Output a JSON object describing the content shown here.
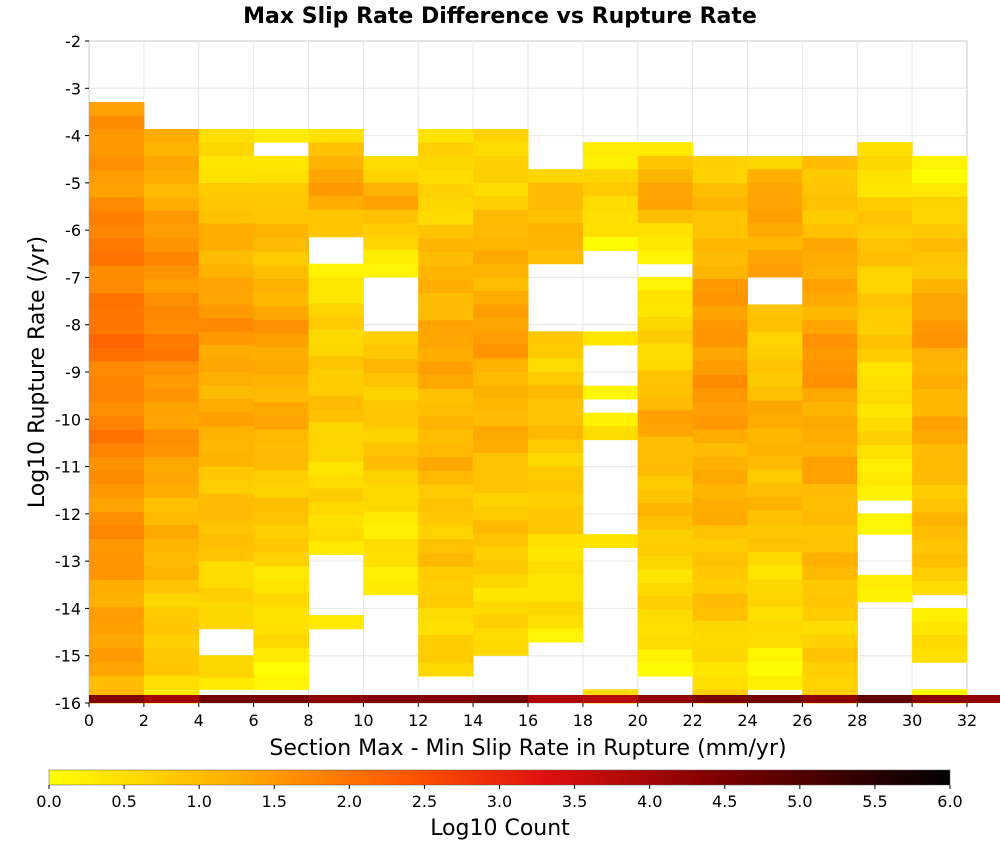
{
  "chart_data": {
    "type": "heatmap",
    "title": "Max Slip Rate Difference vs Rupture Rate",
    "xlabel": "Section Max - Min Slip Rate in Rupture (mm/yr)",
    "ylabel": "Log10 Rupture Rate (/yr)",
    "colorbar_label": "Log10 Count",
    "xlim": [
      0,
      32
    ],
    "ylim": [
      -16,
      -2
    ],
    "x_ticks": [
      "0",
      "2",
      "4",
      "6",
      "8",
      "10",
      "12",
      "14",
      "16",
      "18",
      "20",
      "22",
      "24",
      "26",
      "28",
      "30",
      "32"
    ],
    "y_ticks": [
      "-2",
      "-3",
      "-4",
      "-5",
      "-6",
      "-7",
      "-8",
      "-9",
      "-10",
      "-11",
      "-12",
      "-13",
      "-14",
      "-15",
      "-16"
    ],
    "colorbar_ticks": [
      "0.0",
      "0.5",
      "1.0",
      "1.5",
      "2.0",
      "2.5",
      "3.0",
      "3.5",
      "4.0",
      "4.5",
      "5.0",
      "5.5",
      "6.0"
    ],
    "colorbar_range": [
      0,
      6
    ],
    "colorbar_colors": [
      "#ffff00",
      "#ffb000",
      "#ff5500",
      "#e01010",
      "#7a0000",
      "#000000"
    ],
    "x_bin_width": 2,
    "y_bin_height": 0.286,
    "columns": [
      {
        "x_start": 0,
        "segments": [
          {
            "y_top": -3.29,
            "y_bottom": -16.0,
            "from": 1.4,
            "peak": 2.0,
            "to": 1.2
          }
        ]
      },
      {
        "x_start": 2,
        "segments": [
          {
            "y_top": -3.86,
            "y_bottom": -15.71,
            "from": 1.1,
            "peak": 1.8,
            "to": 0.6
          },
          {
            "y_top": -15.71,
            "y_bottom": -16.0,
            "from": 0.3,
            "peak": 0.3,
            "to": 0.3
          }
        ]
      },
      {
        "x_start": 4,
        "segments": [
          {
            "y_top": -3.86,
            "y_bottom": -14.43,
            "from": 0.4,
            "peak": 1.5,
            "to": 0.6
          },
          {
            "y_top": -14.99,
            "y_bottom": -15.71,
            "from": 0.5,
            "peak": 0.7,
            "to": 0.6
          }
        ]
      },
      {
        "x_start": 6,
        "segments": [
          {
            "y_top": -3.86,
            "y_bottom": -4.14,
            "from": 0.3,
            "peak": 0.3,
            "to": 0.3
          },
          {
            "y_top": -4.43,
            "y_bottom": -15.71,
            "from": 0.6,
            "peak": 1.4,
            "to": 0.2
          }
        ]
      },
      {
        "x_start": 8,
        "segments": [
          {
            "y_top": -3.86,
            "y_bottom": -6.14,
            "from": 0.6,
            "peak": 1.4,
            "to": 0.9
          },
          {
            "y_top": -6.71,
            "y_bottom": -12.86,
            "from": 0.2,
            "peak": 0.9,
            "to": 0.4
          },
          {
            "y_top": -14.14,
            "y_bottom": -14.43,
            "from": 0.2,
            "peak": 0.2,
            "to": 0.2
          }
        ]
      },
      {
        "x_start": 10,
        "segments": [
          {
            "y_top": -4.43,
            "y_bottom": -6.99,
            "from": 0.6,
            "peak": 1.2,
            "to": 0.3
          },
          {
            "y_top": -8.14,
            "y_bottom": -13.71,
            "from": 0.8,
            "peak": 0.9,
            "to": 0.2
          }
        ]
      },
      {
        "x_start": 12,
        "segments": [
          {
            "y_top": -3.86,
            "y_bottom": -15.43,
            "from": 0.4,
            "peak": 1.3,
            "to": 0.6
          }
        ]
      },
      {
        "x_start": 14,
        "segments": [
          {
            "y_top": -3.86,
            "y_bottom": -14.99,
            "from": 0.5,
            "peak": 1.4,
            "to": 0.5
          }
        ]
      },
      {
        "x_start": 16,
        "segments": [
          {
            "y_top": -4.71,
            "y_bottom": -6.71,
            "from": 0.6,
            "peak": 1.2,
            "to": 1.0
          },
          {
            "y_top": -8.14,
            "y_bottom": -14.71,
            "from": 0.8,
            "peak": 0.9,
            "to": 0.3
          }
        ]
      },
      {
        "x_start": 18,
        "segments": [
          {
            "y_top": -4.14,
            "y_bottom": -6.43,
            "from": 0.3,
            "peak": 0.8,
            "to": 0.1
          },
          {
            "y_top": -8.14,
            "y_bottom": -8.43,
            "from": 0.6,
            "peak": 0.6,
            "to": 0.6
          },
          {
            "y_top": -9.29,
            "y_bottom": -9.57,
            "from": 0.4,
            "peak": 0.4,
            "to": 0.4
          },
          {
            "y_top": -9.86,
            "y_bottom": -10.43,
            "from": 0.3,
            "peak": 0.3,
            "to": 0.3
          },
          {
            "y_top": -12.43,
            "y_bottom": -12.71,
            "from": 0.3,
            "peak": 0.3,
            "to": 0.3
          },
          {
            "y_top": -15.71,
            "y_bottom": -16.0,
            "from": 0.3,
            "peak": 0.3,
            "to": 0.3
          }
        ]
      },
      {
        "x_start": 20,
        "segments": [
          {
            "y_top": -4.14,
            "y_bottom": -6.71,
            "from": 0.5,
            "peak": 1.4,
            "to": 0.2
          },
          {
            "y_top": -6.99,
            "y_bottom": -15.43,
            "from": 0.2,
            "peak": 1.2,
            "to": 0.3
          }
        ]
      },
      {
        "x_start": 22,
        "segments": [
          {
            "y_top": -4.43,
            "y_bottom": -16.0,
            "from": 0.7,
            "peak": 1.6,
            "to": 0.5
          }
        ]
      },
      {
        "x_start": 24,
        "segments": [
          {
            "y_top": -4.43,
            "y_bottom": -6.99,
            "from": 0.6,
            "peak": 1.5,
            "to": 1.2
          },
          {
            "y_top": -7.57,
            "y_bottom": -15.71,
            "from": 0.7,
            "peak": 1.2,
            "to": 0.2
          }
        ]
      },
      {
        "x_start": 26,
        "segments": [
          {
            "y_top": -4.43,
            "y_bottom": -16.0,
            "from": 0.8,
            "peak": 1.5,
            "to": 0.6
          }
        ]
      },
      {
        "x_start": 28,
        "segments": [
          {
            "y_top": -4.14,
            "y_bottom": -11.71,
            "from": 0.5,
            "peak": 0.9,
            "to": 0.3
          },
          {
            "y_top": -11.99,
            "y_bottom": -12.43,
            "from": 0.2,
            "peak": 0.2,
            "to": 0.2
          },
          {
            "y_top": -13.29,
            "y_bottom": -13.86,
            "from": 0.3,
            "peak": 0.3,
            "to": 0.3
          }
        ]
      },
      {
        "x_start": 30,
        "segments": [
          {
            "y_top": -4.43,
            "y_bottom": -13.71,
            "from": 0.2,
            "peak": 1.4,
            "to": 0.8
          },
          {
            "y_top": -13.99,
            "y_bottom": -15.14,
            "from": 0.4,
            "peak": 0.6,
            "to": 0.3
          },
          {
            "y_top": -15.71,
            "y_bottom": -16.0,
            "from": 0.3,
            "peak": 0.3,
            "to": 0.3
          }
        ]
      }
    ],
    "bottom_row": {
      "y": -16.0,
      "values": [
        4.4,
        4.0,
        4.6,
        4.5,
        4.3,
        4.4,
        4.4,
        4.6,
        3.9,
        3.8,
        4.2,
        4.5,
        4.6,
        4.3,
        4.8,
        4.3,
        4.2
      ]
    }
  }
}
